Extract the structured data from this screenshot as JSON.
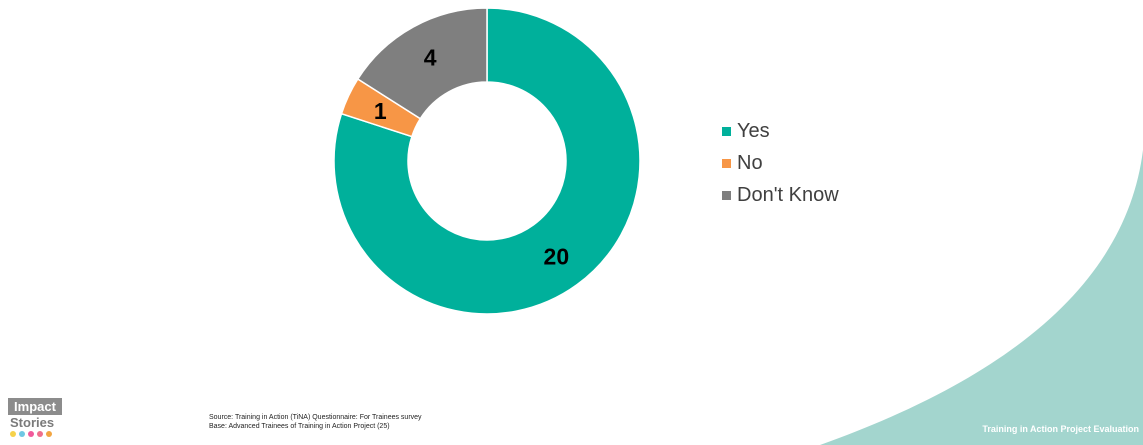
{
  "chart_data": {
    "type": "pie",
    "donut": true,
    "categories": [
      "Yes",
      "No",
      "Don't Know"
    ],
    "values": [
      20,
      1,
      4
    ],
    "colors": [
      "#00b09b",
      "#f79646",
      "#7f7f7f"
    ],
    "data_labels": [
      "20",
      "1",
      "4"
    ],
    "legend_position": "right",
    "title": ""
  },
  "legend": {
    "items": [
      {
        "label": "Yes",
        "color": "#00b09b"
      },
      {
        "label": "No",
        "color": "#f79646"
      },
      {
        "label": "Don't Know",
        "color": "#7f7f7f"
      }
    ]
  },
  "logo": {
    "line1": "Impact",
    "line2": "Stories",
    "dot_colors": [
      "#f6d24b",
      "#6fc7e3",
      "#f15a9b",
      "#ef6f8d",
      "#f2a541"
    ]
  },
  "source": {
    "line1": "Source: Training in Action (TiNA) Questionnaire: For Trainees survey",
    "line2": "Base:  Advanced Trainees of Training in Action Project (25)"
  },
  "footer": {
    "title": "Training in Action Project Evaluation"
  },
  "colors": {
    "wave": "#a3d5ce",
    "wave_edge": "#cbe7e3"
  }
}
